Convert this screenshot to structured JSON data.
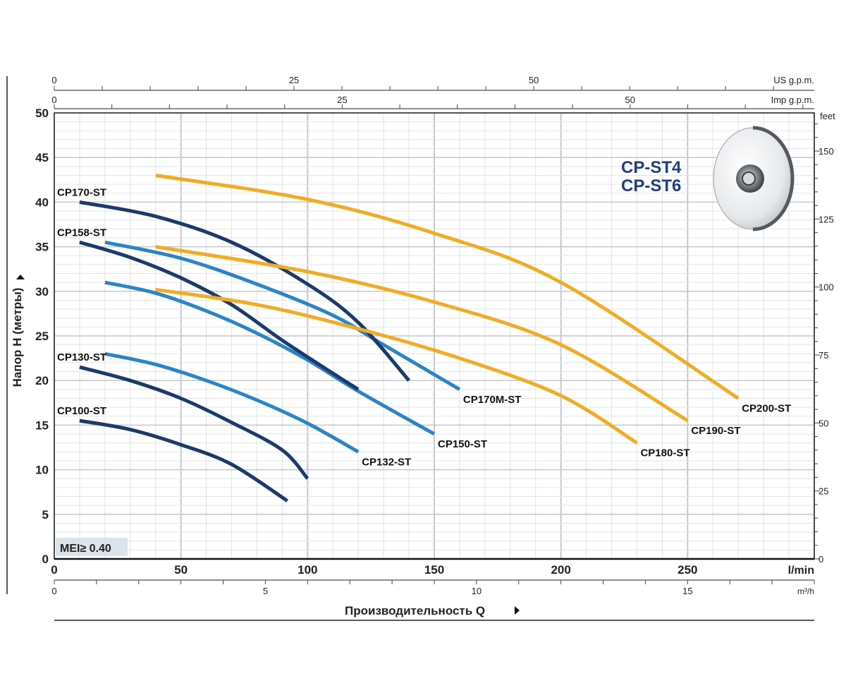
{
  "chart_data": {
    "type": "line",
    "title_lines": [
      "CP-ST4",
      "CP-ST6"
    ],
    "title_color": "#1f3f7a",
    "badge": "MEI≥ 0.40",
    "xlabel": "Производительность Q",
    "ylabel": "Напор H (метры)",
    "x_unit": "l/min",
    "y_right_unit": "feet",
    "xlim": [
      0,
      300
    ],
    "ylim": [
      0,
      50
    ],
    "x_ticks": [
      0,
      50,
      100,
      150,
      200,
      250
    ],
    "y_ticks": [
      0,
      5,
      10,
      15,
      20,
      25,
      30,
      35,
      40,
      45,
      50
    ],
    "top_axis_us": {
      "label": "US g.p.m.",
      "ticks": [
        0,
        25,
        50
      ]
    },
    "top_axis_imp": {
      "label": "Imp g.p.m.",
      "ticks": [
        0,
        25,
        50
      ]
    },
    "bottom_axis_m3h": {
      "label": "m³/h",
      "ticks": [
        0,
        5,
        10,
        15
      ]
    },
    "right_axis_feet": {
      "label": "feet",
      "ticks": [
        0,
        25,
        50,
        75,
        100,
        125,
        150
      ]
    },
    "colors": {
      "dark": "#1b3a6b",
      "mid": "#2b84c6",
      "orange": "#f0ac26"
    },
    "series": [
      {
        "name": "CP100-ST",
        "color": "dark",
        "points": [
          [
            10,
            15.5
          ],
          [
            30,
            14.5
          ],
          [
            50,
            12.8
          ],
          [
            70,
            10.6
          ],
          [
            92,
            6.5
          ]
        ]
      },
      {
        "name": "CP130-ST",
        "color": "dark",
        "points": [
          [
            10,
            21.5
          ],
          [
            30,
            20
          ],
          [
            50,
            18
          ],
          [
            70,
            15.3
          ],
          [
            90,
            12.2
          ],
          [
            100,
            9
          ]
        ]
      },
      {
        "name": "CP132-ST",
        "color": "mid",
        "points": [
          [
            20,
            23
          ],
          [
            40,
            21.8
          ],
          [
            60,
            20
          ],
          [
            80,
            17.8
          ],
          [
            100,
            15.2
          ],
          [
            120,
            12
          ]
        ]
      },
      {
        "name": "CP150-ST",
        "color": "mid",
        "points": [
          [
            20,
            31
          ],
          [
            40,
            29.8
          ],
          [
            60,
            27.8
          ],
          [
            80,
            25.3
          ],
          [
            100,
            22.3
          ],
          [
            120,
            18.8
          ],
          [
            150,
            14
          ]
        ]
      },
      {
        "name": "CP158-ST",
        "color": "dark",
        "points": [
          [
            10,
            35.5
          ],
          [
            30,
            33.8
          ],
          [
            50,
            31.5
          ],
          [
            70,
            28.5
          ],
          [
            90,
            24.5
          ],
          [
            110,
            20.8
          ],
          [
            120,
            19
          ]
        ]
      },
      {
        "name": "CP170M-ST",
        "color": "mid",
        "points": [
          [
            20,
            35.5
          ],
          [
            50,
            33.7
          ],
          [
            80,
            30.8
          ],
          [
            110,
            27.3
          ],
          [
            130,
            24
          ],
          [
            160,
            19
          ]
        ]
      },
      {
        "name": "CP170-ST",
        "color": "dark",
        "points": [
          [
            10,
            40
          ],
          [
            40,
            38.4
          ],
          [
            70,
            35.5
          ],
          [
            100,
            30.8
          ],
          [
            120,
            26.5
          ],
          [
            140,
            20
          ]
        ]
      },
      {
        "name": "CP180-ST",
        "color": "orange",
        "points": [
          [
            40,
            30.2
          ],
          [
            80,
            28.5
          ],
          [
            120,
            25.8
          ],
          [
            160,
            22.5
          ],
          [
            200,
            18.3
          ],
          [
            230,
            13
          ]
        ]
      },
      {
        "name": "CP190-ST",
        "color": "orange",
        "points": [
          [
            40,
            35
          ],
          [
            100,
            32.2
          ],
          [
            150,
            28.8
          ],
          [
            200,
            24
          ],
          [
            250,
            15.5
          ]
        ]
      },
      {
        "name": "CP200-ST",
        "color": "orange",
        "points": [
          [
            40,
            43
          ],
          [
            100,
            40.3
          ],
          [
            150,
            36.5
          ],
          [
            200,
            31
          ],
          [
            270,
            18
          ]
        ]
      }
    ]
  }
}
